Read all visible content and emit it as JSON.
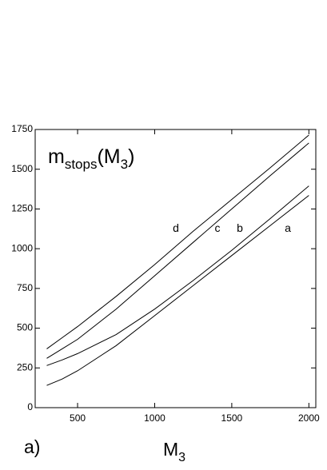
{
  "chart_data": {
    "type": "line",
    "title": [
      "m",
      "stops",
      "(M",
      "3",
      ")"
    ],
    "x_label": [
      "M",
      "3"
    ],
    "panel_label": "a)",
    "x": [
      300,
      400,
      500,
      750,
      1000,
      1250,
      1500,
      1750,
      2000
    ],
    "series": [
      {
        "name": "a",
        "color": "#000000",
        "values": [
          140,
          180,
          232,
          390,
          579,
          768,
          957,
          1146,
          1335
        ]
      },
      {
        "name": "b",
        "color": "#000000",
        "values": [
          265,
          300,
          340,
          460,
          620,
          800,
          990,
          1190,
          1395
        ]
      },
      {
        "name": "c",
        "color": "#000000",
        "values": [
          310,
          370,
          430,
          620,
          830,
          1040,
          1250,
          1460,
          1665
        ]
      },
      {
        "name": "d",
        "color": "#000000",
        "values": [
          370,
          440,
          510,
          700,
          900,
          1110,
          1310,
          1510,
          1715
        ]
      }
    ],
    "xlim": [
      225,
      2045
    ],
    "xticks": [
      500,
      1000,
      1500,
      2000
    ],
    "ylim": [
      0,
      1750
    ],
    "yticks": [
      0,
      250,
      500,
      750,
      1000,
      1250,
      1500,
      1750
    ]
  }
}
